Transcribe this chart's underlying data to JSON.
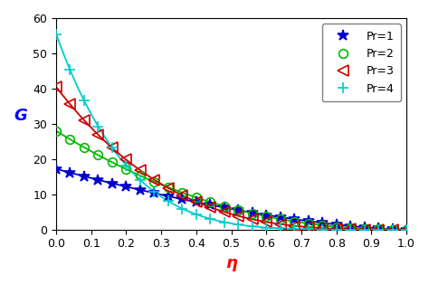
{
  "title": "",
  "xlabel": "η",
  "ylabel": "G",
  "xlim": [
    0,
    1
  ],
  "ylim": [
    0,
    60
  ],
  "xticks": [
    0,
    0.1,
    0.2,
    0.3,
    0.4,
    0.5,
    0.6,
    0.7,
    0.8,
    0.9,
    1.0
  ],
  "yticks": [
    0,
    10,
    20,
    30,
    40,
    50,
    60
  ],
  "curves": [
    {
      "label": "Pr=1",
      "color": "#0000cc",
      "marker": "*",
      "markerfacecolor": "#0000cc",
      "y0": 17.2,
      "exponent": 1.55
    },
    {
      "label": "Pr=2",
      "color": "#00bb00",
      "marker": "o",
      "markerfacecolor": "none",
      "y0": 28.0,
      "exponent": 2.2
    },
    {
      "label": "Pr=3",
      "color": "#cc0000",
      "marker": "<",
      "markerfacecolor": "none",
      "y0": 40.5,
      "exponent": 3.2
    },
    {
      "label": "Pr=4",
      "color": "#00cccc",
      "marker": "+",
      "markerfacecolor": "#00cccc",
      "y0": 55.5,
      "exponent": 5.0
    }
  ],
  "xlabel_color": "red",
  "ylabel_color": "blue",
  "xlabel_fontsize": 13,
  "ylabel_fontsize": 13,
  "legend_loc": "upper right",
  "n_markers": 26,
  "markersize_star": 9,
  "markersize_o": 7,
  "markersize_tri": 9,
  "markersize_plus": 9,
  "linewidth": 1.3
}
